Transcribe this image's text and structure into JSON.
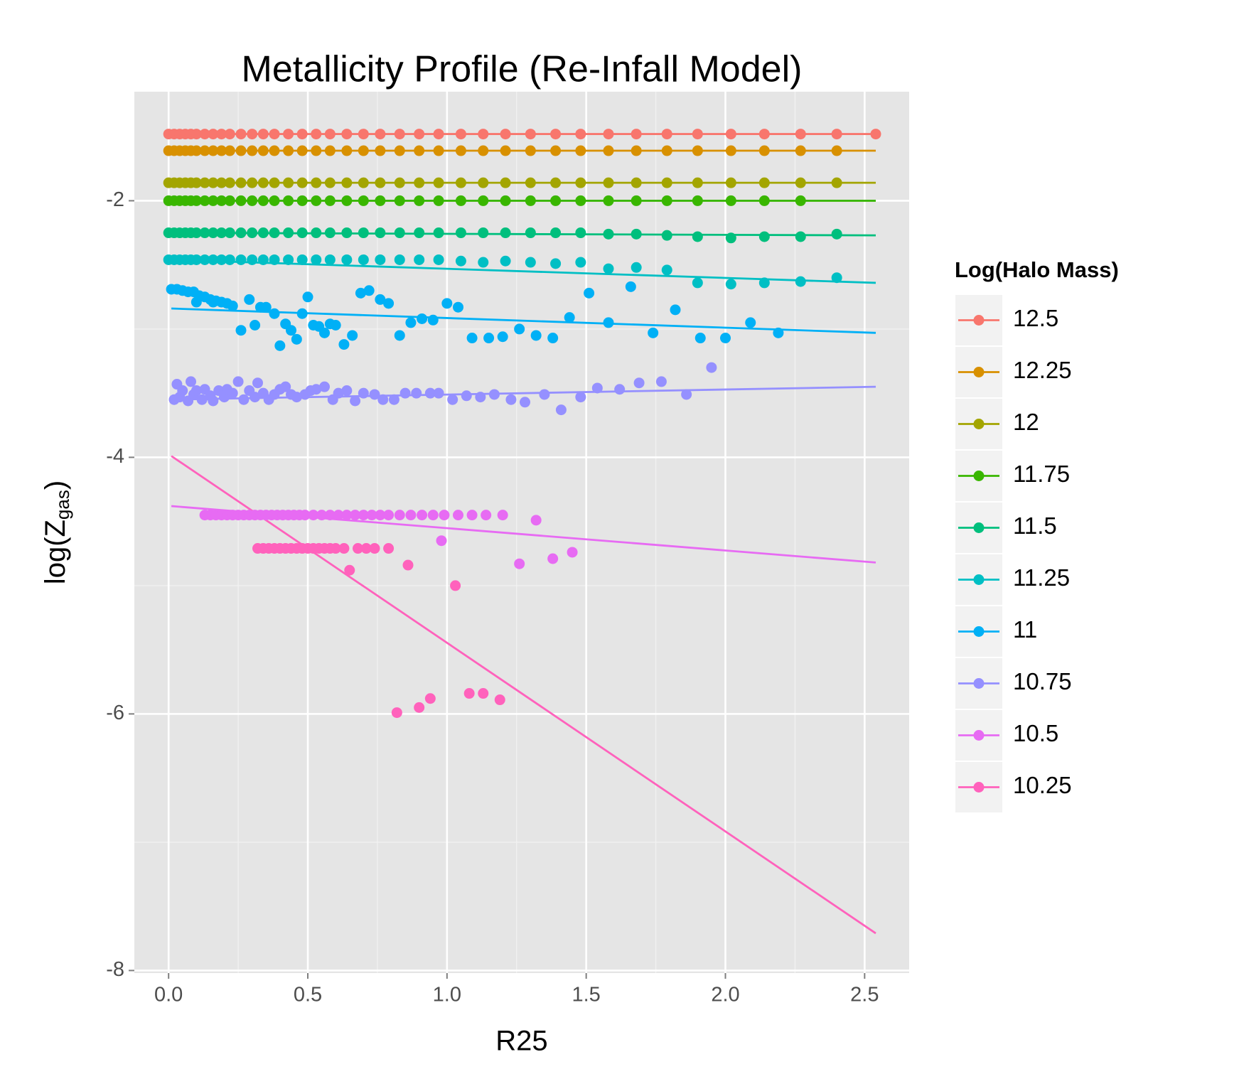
{
  "chart_data": {
    "type": "scatter",
    "title": "Metallicity Profile (Re-Infall Model)",
    "xlabel": "R25",
    "ylabel": [
      "log(Z",
      "gas",
      ")"
    ],
    "legend_title": "Log(Halo Mass)",
    "legend_position": "right",
    "xlim": [
      -0.123,
      2.66
    ],
    "ylim": [
      -8.02,
      -1.15
    ],
    "xticks": [
      {
        "value": 0,
        "label": "0.0"
      },
      0.5,
      {
        "value": 1,
        "label": "1.0"
      },
      1.5,
      {
        "value": 2,
        "label": "2.0"
      },
      2.5
    ],
    "yticks": [
      -8,
      -6,
      -4,
      -2
    ],
    "xminor": [
      0.25,
      0.75,
      1.25,
      1.75,
      2.25
    ],
    "yminor": [
      -7,
      -5,
      -3
    ],
    "grid": true,
    "series": [
      {
        "name": "12.5",
        "color": "#F8766D",
        "x": [
          0,
          0.02,
          0.04,
          0.06,
          0.08,
          0.1,
          0.13,
          0.16,
          0.19,
          0.22,
          0.26,
          0.3,
          0.34,
          0.38,
          0.43,
          0.48,
          0.53,
          0.58,
          0.64,
          0.7,
          0.76,
          0.83,
          0.9,
          0.97,
          1.05,
          1.13,
          1.21,
          1.3,
          1.39,
          1.48,
          1.58,
          1.68,
          1.79,
          1.9,
          2.02,
          2.14,
          2.27,
          2.4,
          2.54
        ],
        "values": [
          -1.48,
          -1.48,
          -1.48,
          -1.48,
          -1.48,
          -1.48,
          -1.48,
          -1.48,
          -1.48,
          -1.48,
          -1.48,
          -1.48,
          -1.48,
          -1.48,
          -1.48,
          -1.48,
          -1.48,
          -1.48,
          -1.48,
          -1.48,
          -1.48,
          -1.48,
          -1.48,
          -1.48,
          -1.48,
          -1.48,
          -1.48,
          -1.48,
          -1.48,
          -1.48,
          -1.48,
          -1.48,
          -1.48,
          -1.48,
          -1.48,
          -1.48,
          -1.48,
          -1.48,
          -1.48
        ],
        "fit": {
          "x": [
            0.01,
            2.54
          ],
          "values": [
            -1.48,
            -1.48
          ]
        }
      },
      {
        "name": "12.25",
        "color": "#D89000",
        "x": [
          0,
          0.02,
          0.04,
          0.06,
          0.08,
          0.1,
          0.13,
          0.16,
          0.19,
          0.22,
          0.26,
          0.3,
          0.34,
          0.38,
          0.43,
          0.48,
          0.53,
          0.58,
          0.64,
          0.7,
          0.76,
          0.83,
          0.9,
          0.97,
          1.05,
          1.13,
          1.21,
          1.3,
          1.39,
          1.48,
          1.58,
          1.68,
          1.79,
          1.9,
          2.02,
          2.14,
          2.27,
          2.4
        ],
        "values": [
          -1.61,
          -1.61,
          -1.61,
          -1.61,
          -1.61,
          -1.61,
          -1.61,
          -1.61,
          -1.61,
          -1.61,
          -1.61,
          -1.61,
          -1.61,
          -1.61,
          -1.61,
          -1.61,
          -1.61,
          -1.61,
          -1.61,
          -1.61,
          -1.61,
          -1.61,
          -1.61,
          -1.61,
          -1.61,
          -1.61,
          -1.61,
          -1.61,
          -1.61,
          -1.61,
          -1.61,
          -1.61,
          -1.61,
          -1.61,
          -1.61,
          -1.61,
          -1.61,
          -1.61
        ],
        "fit": {
          "x": [
            0.01,
            2.54
          ],
          "values": [
            -1.61,
            -1.61
          ]
        }
      },
      {
        "name": "12",
        "color": "#A3A500",
        "x": [
          0,
          0.02,
          0.04,
          0.06,
          0.08,
          0.1,
          0.13,
          0.16,
          0.19,
          0.22,
          0.26,
          0.3,
          0.34,
          0.38,
          0.43,
          0.48,
          0.53,
          0.58,
          0.64,
          0.7,
          0.76,
          0.83,
          0.9,
          0.97,
          1.05,
          1.13,
          1.21,
          1.3,
          1.39,
          1.48,
          1.58,
          1.68,
          1.79,
          1.9,
          2.02,
          2.14,
          2.27,
          2.4
        ],
        "values": [
          -1.86,
          -1.86,
          -1.86,
          -1.86,
          -1.86,
          -1.86,
          -1.86,
          -1.86,
          -1.86,
          -1.86,
          -1.86,
          -1.86,
          -1.86,
          -1.86,
          -1.86,
          -1.86,
          -1.86,
          -1.86,
          -1.86,
          -1.86,
          -1.86,
          -1.86,
          -1.86,
          -1.86,
          -1.86,
          -1.86,
          -1.86,
          -1.86,
          -1.86,
          -1.86,
          -1.86,
          -1.86,
          -1.86,
          -1.86,
          -1.86,
          -1.86,
          -1.86,
          -1.86
        ],
        "fit": {
          "x": [
            0.01,
            2.54
          ],
          "values": [
            -1.86,
            -1.86
          ]
        }
      },
      {
        "name": "11.75",
        "color": "#39B600",
        "x": [
          0,
          0.02,
          0.04,
          0.06,
          0.08,
          0.1,
          0.13,
          0.16,
          0.19,
          0.22,
          0.26,
          0.3,
          0.34,
          0.38,
          0.43,
          0.48,
          0.53,
          0.58,
          0.64,
          0.7,
          0.76,
          0.83,
          0.9,
          0.97,
          1.05,
          1.13,
          1.21,
          1.3,
          1.39,
          1.48,
          1.58,
          1.68,
          1.79,
          1.9,
          2.02,
          2.14,
          2.27
        ],
        "values": [
          -2,
          -2,
          -2,
          -2,
          -2,
          -2,
          -2,
          -2,
          -2,
          -2,
          -2,
          -2,
          -2,
          -2,
          -2,
          -2,
          -2,
          -2,
          -2,
          -2,
          -2,
          -2,
          -2,
          -2,
          -2,
          -2,
          -2,
          -2,
          -2,
          -2,
          -2,
          -2,
          -2,
          -2,
          -2,
          -2,
          -2
        ],
        "fit": {
          "x": [
            0.01,
            2.54
          ],
          "values": [
            -2,
            -2
          ]
        }
      },
      {
        "name": "11.5",
        "color": "#00BF7D",
        "x": [
          0,
          0.02,
          0.04,
          0.06,
          0.08,
          0.1,
          0.13,
          0.16,
          0.19,
          0.22,
          0.26,
          0.3,
          0.34,
          0.38,
          0.43,
          0.48,
          0.53,
          0.58,
          0.64,
          0.7,
          0.76,
          0.83,
          0.9,
          0.97,
          1.05,
          1.13,
          1.21,
          1.3,
          1.39,
          1.48,
          1.58,
          1.68,
          1.79,
          1.9,
          2.02,
          2.14,
          2.27,
          2.4
        ],
        "values": [
          -2.25,
          -2.25,
          -2.25,
          -2.25,
          -2.25,
          -2.25,
          -2.25,
          -2.25,
          -2.25,
          -2.25,
          -2.25,
          -2.25,
          -2.25,
          -2.25,
          -2.25,
          -2.25,
          -2.25,
          -2.25,
          -2.25,
          -2.25,
          -2.25,
          -2.25,
          -2.25,
          -2.25,
          -2.25,
          -2.25,
          -2.25,
          -2.25,
          -2.25,
          -2.25,
          -2.26,
          -2.26,
          -2.27,
          -2.28,
          -2.29,
          -2.28,
          -2.28,
          -2.26
        ],
        "fit": {
          "x": [
            0.01,
            2.54
          ],
          "values": [
            -2.25,
            -2.27
          ]
        }
      },
      {
        "name": "11.25",
        "color": "#00BFC4",
        "x": [
          0,
          0.02,
          0.04,
          0.06,
          0.08,
          0.1,
          0.13,
          0.16,
          0.19,
          0.22,
          0.26,
          0.3,
          0.34,
          0.38,
          0.43,
          0.48,
          0.53,
          0.58,
          0.64,
          0.7,
          0.76,
          0.83,
          0.9,
          0.97,
          1.05,
          1.13,
          1.21,
          1.3,
          1.39,
          1.48,
          1.58,
          1.68,
          1.79,
          1.9,
          2.02,
          2.14,
          2.27,
          2.4
        ],
        "values": [
          -2.46,
          -2.46,
          -2.46,
          -2.46,
          -2.46,
          -2.46,
          -2.46,
          -2.46,
          -2.46,
          -2.46,
          -2.46,
          -2.46,
          -2.46,
          -2.46,
          -2.46,
          -2.46,
          -2.46,
          -2.46,
          -2.46,
          -2.46,
          -2.46,
          -2.46,
          -2.46,
          -2.46,
          -2.47,
          -2.48,
          -2.47,
          -2.48,
          -2.49,
          -2.48,
          -2.53,
          -2.52,
          -2.54,
          -2.64,
          -2.65,
          -2.64,
          -2.63,
          -2.6
        ],
        "fit": {
          "x": [
            0.01,
            2.54
          ],
          "values": [
            -2.46,
            -2.64
          ]
        }
      },
      {
        "name": "11",
        "color": "#00B0F6",
        "x": [
          0.01,
          0.03,
          0.05,
          0.07,
          0.09,
          0.11,
          0.13,
          0.15,
          0.17,
          0.19,
          0.21,
          0.23,
          0.1,
          0.16,
          0.26,
          0.29,
          0.31,
          0.33,
          0.35,
          0.38,
          0.4,
          0.42,
          0.44,
          0.46,
          0.48,
          0.5,
          0.52,
          0.54,
          0.56,
          0.58,
          0.6,
          0.63,
          0.66,
          0.69,
          0.72,
          0.76,
          0.79,
          0.83,
          0.87,
          0.91,
          0.95,
          1.0,
          1.04,
          1.09,
          1.15,
          1.2,
          1.26,
          1.32,
          1.38,
          1.44,
          1.51,
          1.58,
          1.66,
          1.74,
          1.82,
          1.91,
          2.0,
          2.09,
          2.19
        ],
        "values": [
          -2.69,
          -2.69,
          -2.7,
          -2.71,
          -2.71,
          -2.74,
          -2.75,
          -2.77,
          -2.78,
          -2.79,
          -2.8,
          -2.82,
          -2.79,
          -2.79,
          -3.01,
          -2.77,
          -2.97,
          -2.83,
          -2.83,
          -2.88,
          -3.13,
          -2.96,
          -3.01,
          -3.08,
          -2.88,
          -2.75,
          -2.97,
          -2.98,
          -3.03,
          -2.96,
          -2.97,
          -3.12,
          -3.05,
          -2.72,
          -2.7,
          -2.77,
          -2.8,
          -3.05,
          -2.95,
          -2.92,
          -2.93,
          -2.8,
          -2.83,
          -3.07,
          -3.07,
          -3.06,
          -3.0,
          -3.05,
          -3.07,
          -2.91,
          -2.72,
          -2.95,
          -2.67,
          -3.03,
          -2.85,
          -3.07,
          -3.07,
          -2.95,
          -3.03
        ],
        "fit": {
          "x": [
            0.01,
            2.54
          ],
          "values": [
            -2.84,
            -3.03
          ]
        }
      },
      {
        "name": "10.75",
        "color": "#9590FF",
        "x": [
          0.02,
          0.03,
          0.04,
          0.05,
          0.07,
          0.08,
          0.09,
          0.1,
          0.12,
          0.13,
          0.15,
          0.16,
          0.18,
          0.2,
          0.21,
          0.23,
          0.25,
          0.27,
          0.29,
          0.31,
          0.32,
          0.34,
          0.36,
          0.38,
          0.4,
          0.42,
          0.44,
          0.46,
          0.49,
          0.51,
          0.53,
          0.56,
          0.59,
          0.61,
          0.64,
          0.67,
          0.7,
          0.74,
          0.77,
          0.81,
          0.85,
          0.89,
          0.94,
          0.97,
          1.02,
          1.07,
          1.12,
          1.17,
          1.23,
          1.28,
          1.35,
          1.41,
          1.48,
          1.54,
          1.62,
          1.69,
          1.77,
          1.86,
          1.95
        ],
        "values": [
          -3.55,
          -3.43,
          -3.53,
          -3.48,
          -3.56,
          -3.41,
          -3.51,
          -3.48,
          -3.55,
          -3.47,
          -3.52,
          -3.56,
          -3.48,
          -3.53,
          -3.47,
          -3.5,
          -3.41,
          -3.55,
          -3.48,
          -3.53,
          -3.42,
          -3.5,
          -3.55,
          -3.51,
          -3.47,
          -3.45,
          -3.51,
          -3.53,
          -3.51,
          -3.48,
          -3.47,
          -3.45,
          -3.55,
          -3.5,
          -3.48,
          -3.56,
          -3.5,
          -3.51,
          -3.55,
          -3.55,
          -3.5,
          -3.5,
          -3.5,
          -3.5,
          -3.55,
          -3.52,
          -3.53,
          -3.51,
          -3.55,
          -3.57,
          -3.51,
          -3.63,
          -3.53,
          -3.46,
          -3.47,
          -3.42,
          -3.41,
          -3.51,
          -3.3
        ],
        "fit": {
          "x": [
            0.01,
            2.54
          ],
          "values": [
            -3.55,
            -3.45
          ]
        }
      },
      {
        "name": "10.5",
        "color": "#E76BF3",
        "x": [
          0.13,
          0.15,
          0.17,
          0.19,
          0.21,
          0.23,
          0.25,
          0.27,
          0.29,
          0.31,
          0.33,
          0.35,
          0.37,
          0.39,
          0.41,
          0.43,
          0.45,
          0.47,
          0.49,
          0.52,
          0.55,
          0.58,
          0.61,
          0.64,
          0.67,
          0.7,
          0.73,
          0.76,
          0.79,
          0.83,
          0.87,
          0.91,
          0.95,
          0.99,
          1.04,
          1.09,
          1.14,
          1.2,
          0.98,
          1.32,
          1.26,
          1.38,
          1.45
        ],
        "values": [
          -4.45,
          -4.45,
          -4.45,
          -4.45,
          -4.45,
          -4.45,
          -4.45,
          -4.45,
          -4.45,
          -4.45,
          -4.45,
          -4.45,
          -4.45,
          -4.45,
          -4.45,
          -4.45,
          -4.45,
          -4.45,
          -4.45,
          -4.45,
          -4.45,
          -4.45,
          -4.45,
          -4.45,
          -4.45,
          -4.45,
          -4.45,
          -4.45,
          -4.45,
          -4.45,
          -4.45,
          -4.45,
          -4.45,
          -4.45,
          -4.45,
          -4.45,
          -4.45,
          -4.45,
          -4.65,
          -4.49,
          -4.83,
          -4.79,
          -4.74
        ],
        "fit": {
          "x": [
            0.01,
            2.54
          ],
          "values": [
            -4.38,
            -4.82
          ]
        }
      },
      {
        "name": "10.25",
        "color": "#FF62BC",
        "x": [
          0.32,
          0.34,
          0.36,
          0.38,
          0.4,
          0.42,
          0.44,
          0.46,
          0.48,
          0.5,
          0.52,
          0.54,
          0.56,
          0.58,
          0.6,
          0.63,
          0.68,
          0.71,
          0.74,
          0.79,
          0.65,
          0.86,
          1.03,
          0.82,
          0.9,
          0.94,
          1.08,
          1.13,
          1.19
        ],
        "values": [
          -4.71,
          -4.71,
          -4.71,
          -4.71,
          -4.71,
          -4.71,
          -4.71,
          -4.71,
          -4.71,
          -4.71,
          -4.71,
          -4.71,
          -4.71,
          -4.71,
          -4.71,
          -4.71,
          -4.71,
          -4.71,
          -4.71,
          -4.71,
          -4.88,
          -4.84,
          -5.0,
          -5.99,
          -5.95,
          -5.88,
          -5.84,
          -5.84,
          -5.89
        ],
        "fit": {
          "x": [
            0.01,
            2.54
          ],
          "values": [
            -3.99,
            -7.71
          ]
        }
      }
    ]
  }
}
